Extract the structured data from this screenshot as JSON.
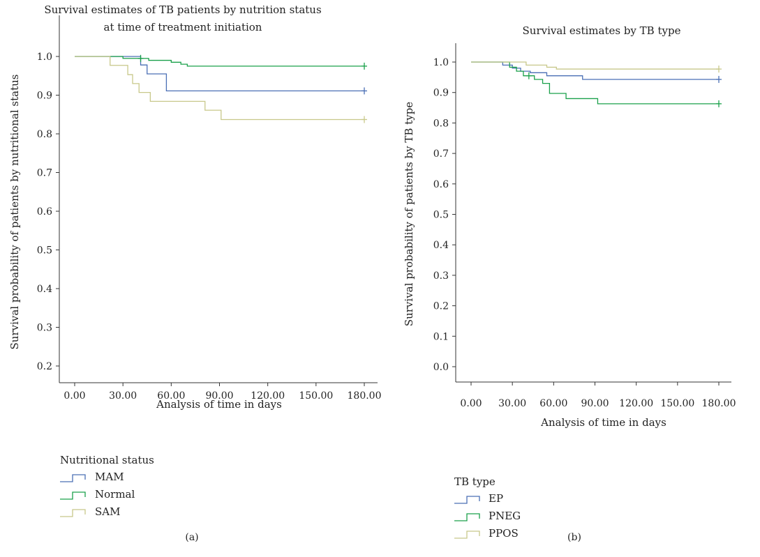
{
  "chart_data": [
    {
      "type": "line",
      "panel_label": "(a)",
      "title": [
        "Survival estimates of TB patients by nutrition status",
        "at time of treatment initiation"
      ],
      "xlabel": "Analysis of time in days",
      "ylabel": "Survival probability of patients by nutritional status",
      "xlim": [
        0,
        180
      ],
      "ylim": [
        0.2,
        1.0
      ],
      "xticks": [
        0,
        30,
        60,
        90,
        120,
        150,
        180
      ],
      "xtick_labels": [
        "0.00",
        "30.00",
        "60.00",
        "90.00",
        "120.00",
        "150.00",
        "180.00"
      ],
      "yticks": [
        0.2,
        0.3,
        0.4,
        0.5,
        0.6,
        0.7,
        0.8,
        0.9,
        1.0
      ],
      "ytick_labels": [
        "0.2",
        "0.3",
        "0.4",
        "0.5",
        "0.6",
        "0.7",
        "0.8",
        "0.9",
        "1.0"
      ],
      "grid": false,
      "step": true,
      "legend_title": "Nutritional status",
      "legend_position": "bottom-left",
      "series": [
        {
          "name": "MAM",
          "color": "#4a6fb5",
          "x": [
            0,
            38,
            41,
            45,
            56,
            57,
            180
          ],
          "y": [
            1.0,
            1.0,
            0.978,
            0.955,
            0.955,
            0.911,
            0.911
          ],
          "censored": [
            {
              "x": 180,
              "y": 0.911
            }
          ]
        },
        {
          "name": "Normal",
          "color": "#1aa04a",
          "x": [
            0,
            22,
            30,
            42,
            46,
            55,
            60,
            66,
            70,
            180
          ],
          "y": [
            1.0,
            1.0,
            0.995,
            0.995,
            0.99,
            0.99,
            0.985,
            0.98,
            0.975,
            0.975
          ],
          "censored": [
            {
              "x": 41,
              "y": 0.995
            },
            {
              "x": 180,
              "y": 0.975
            }
          ]
        },
        {
          "name": "SAM",
          "color": "#c8c88a",
          "x": [
            0,
            20,
            22,
            30,
            33,
            36,
            40,
            47,
            55,
            81,
            91,
            180
          ],
          "y": [
            1.0,
            1.0,
            0.977,
            0.977,
            0.953,
            0.93,
            0.907,
            0.884,
            0.884,
            0.861,
            0.837,
            0.837
          ],
          "censored": [
            {
              "x": 180,
              "y": 0.837
            }
          ]
        }
      ]
    },
    {
      "type": "line",
      "panel_label": "(b)",
      "title": [
        "Survival estimates by TB type"
      ],
      "xlabel": "Analysis of time in days",
      "ylabel": "Survival probability of patients by TB type",
      "xlim": [
        0,
        180
      ],
      "ylim": [
        0.0,
        1.0
      ],
      "xticks": [
        0,
        30,
        60,
        90,
        120,
        150,
        180
      ],
      "xtick_labels": [
        "0.00",
        "30.00",
        "60.00",
        "90.00",
        "120.00",
        "150.00",
        "180.00"
      ],
      "yticks": [
        0.0,
        0.1,
        0.2,
        0.3,
        0.4,
        0.5,
        0.6,
        0.7,
        0.8,
        0.9,
        1.0
      ],
      "ytick_labels": [
        "0.0",
        "0.1",
        "0.2",
        "0.3",
        "0.4",
        "0.5",
        "0.6",
        "0.7",
        "0.8",
        "0.9",
        "1.0"
      ],
      "grid": false,
      "step": true,
      "legend_title": "TB type",
      "legend_position": "bottom-left",
      "series": [
        {
          "name": "EP",
          "color": "#4a6fb5",
          "x": [
            0,
            20,
            23,
            30,
            36,
            43,
            55,
            70,
            81,
            180
          ],
          "y": [
            1.0,
            1.0,
            0.99,
            0.98,
            0.97,
            0.965,
            0.955,
            0.955,
            0.943,
            0.943
          ],
          "censored": [
            {
              "x": 180,
              "y": 0.943
            }
          ]
        },
        {
          "name": "PNEG",
          "color": "#1aa04a",
          "x": [
            0,
            22,
            28,
            33,
            38,
            46,
            52,
            57,
            69,
            92,
            180
          ],
          "y": [
            1.0,
            1.0,
            0.983,
            0.97,
            0.955,
            0.943,
            0.93,
            0.897,
            0.88,
            0.863,
            0.863
          ],
          "censored": [
            {
              "x": 42,
              "y": 0.955
            },
            {
              "x": 180,
              "y": 0.863
            }
          ]
        },
        {
          "name": "PPOS",
          "color": "#c8c88a",
          "x": [
            0,
            35,
            40,
            55,
            62,
            180
          ],
          "y": [
            1.0,
            1.0,
            0.99,
            0.983,
            0.977,
            0.977
          ],
          "censored": [
            {
              "x": 180,
              "y": 0.977
            }
          ]
        }
      ]
    }
  ]
}
